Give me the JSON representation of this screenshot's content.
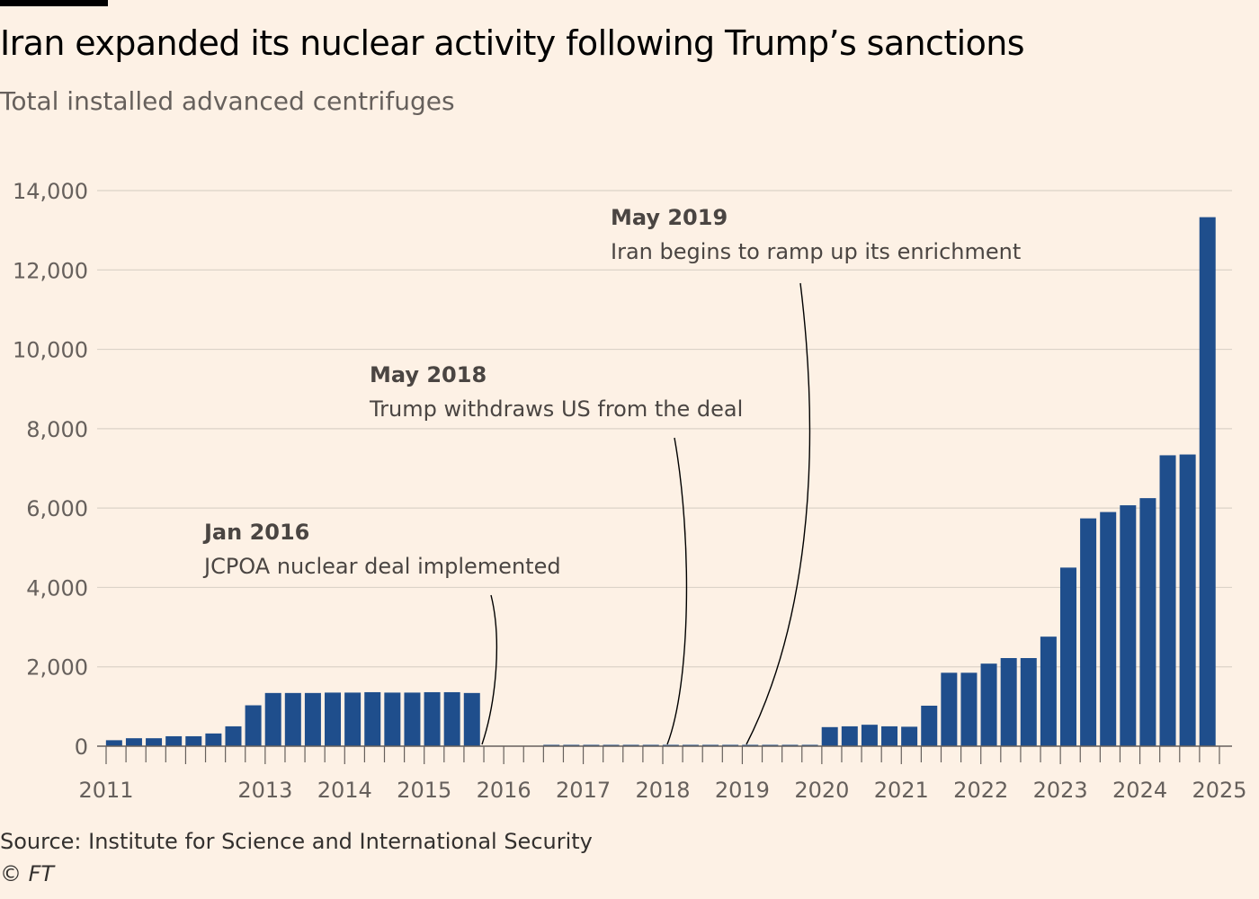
{
  "header": {
    "title": "Iran expanded its nuclear activity following Trump’s sanctions",
    "subtitle": "Total installed advanced centrifuges"
  },
  "footer": {
    "source": "Source: Institute for Science and International Security",
    "credit": "© FT"
  },
  "chart_data": {
    "type": "bar",
    "title": "Iran expanded its nuclear activity following Trump’s sanctions",
    "subtitle": "Total installed advanced centrifuges",
    "xlabel": "",
    "ylabel": "",
    "ylim": [
      0,
      14000
    ],
    "yticks": [
      0,
      2000,
      4000,
      6000,
      8000,
      10000,
      12000,
      14000
    ],
    "ytick_labels": [
      "0",
      "2,000",
      "4,000",
      "6,000",
      "8,000",
      "10,000",
      "12,000",
      "14,000"
    ],
    "grid": true,
    "legend": "none",
    "bar_color": "#1f4e8c",
    "xrange": [
      2011.0,
      2025.0
    ],
    "year_labels": [
      {
        "year": 2011,
        "label": "2011"
      },
      {
        "year": 2013,
        "label": "2013"
      },
      {
        "year": 2014,
        "label": "2014"
      },
      {
        "year": 2015,
        "label": "2015"
      },
      {
        "year": 2016,
        "label": "2016"
      },
      {
        "year": 2017,
        "label": "2017"
      },
      {
        "year": 2018,
        "label": "2018"
      },
      {
        "year": 2019,
        "label": "2019"
      },
      {
        "year": 2020,
        "label": "2020"
      },
      {
        "year": 2021,
        "label": "2021"
      },
      {
        "year": 2022,
        "label": "2022"
      },
      {
        "year": 2023,
        "label": "2023"
      },
      {
        "year": 2024,
        "label": "2024"
      },
      {
        "year": 2025,
        "label": "2025"
      }
    ],
    "x": [
      2011.1,
      2011.35,
      2011.6,
      2011.85,
      2012.1,
      2012.35,
      2012.6,
      2012.85,
      2013.1,
      2013.35,
      2013.6,
      2013.85,
      2014.1,
      2014.35,
      2014.6,
      2014.85,
      2015.1,
      2015.35,
      2015.6,
      2015.85,
      2016.1,
      2016.35,
      2016.6,
      2016.85,
      2017.1,
      2017.35,
      2017.6,
      2017.85,
      2018.1,
      2018.35,
      2018.6,
      2018.85,
      2019.1,
      2019.35,
      2019.6,
      2019.85,
      2020.1,
      2020.35,
      2020.6,
      2020.85,
      2021.1,
      2021.35,
      2021.6,
      2021.85,
      2022.1,
      2022.35,
      2022.6,
      2022.85,
      2023.1,
      2023.35,
      2023.6,
      2023.85,
      2024.1,
      2024.35,
      2024.6,
      2024.85
    ],
    "values": [
      150,
      200,
      200,
      250,
      250,
      320,
      500,
      1030,
      1340,
      1340,
      1340,
      1350,
      1350,
      1360,
      1350,
      1350,
      1360,
      1360,
      1340,
      0,
      0,
      0,
      20,
      20,
      20,
      20,
      20,
      20,
      20,
      20,
      20,
      20,
      20,
      20,
      20,
      20,
      480,
      500,
      540,
      500,
      490,
      1020,
      1850,
      1850,
      2080,
      2220,
      2220,
      2760,
      4500,
      5740,
      5900,
      6070,
      6250,
      7330,
      7350,
      13330
    ],
    "annotations": [
      {
        "heading": "Jan 2016",
        "text": "JCPOA nuclear deal implemented",
        "x": 2016.0
      },
      {
        "heading": "May 2018",
        "text": "Trump withdraws US from the deal",
        "x": 2018.38
      },
      {
        "heading": "May 2019",
        "text": "Iran begins to ramp up its enrichment",
        "x": 2019.38
      }
    ]
  }
}
